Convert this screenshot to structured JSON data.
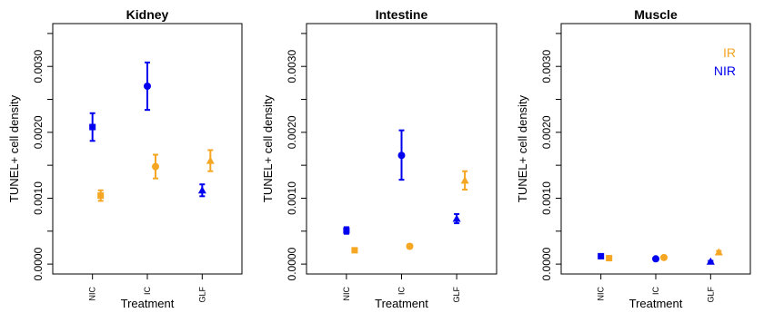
{
  "colors": {
    "IR": "#f5a623",
    "NIR": "#0000ee",
    "axis": "#000000"
  },
  "legend": {
    "placement": "top-right",
    "entries": [
      "IR",
      "NIR"
    ],
    "shown_in_panel": 2
  },
  "chart_data": [
    {
      "type": "scatter",
      "title": "Kidney",
      "xlabel": "Treatment",
      "ylabel": "TUNEL+ cell density",
      "categories": [
        "NIC",
        "IC",
        "GLF"
      ],
      "markers": [
        "square",
        "circle",
        "triangle"
      ],
      "ylim": [
        -0.00015,
        0.00365
      ],
      "yticks": [
        0,
        0.001,
        0.002,
        0.003
      ],
      "ytick_labels": [
        "0.0000",
        "0.0010",
        "0.0020",
        "0.0030"
      ],
      "grid": false,
      "series": [
        {
          "name": "NIR",
          "values": [
            0.00208,
            0.0027,
            0.00112
          ],
          "lower": [
            0.00187,
            0.00234,
            0.00103
          ],
          "upper": [
            0.00229,
            0.00306,
            0.00121
          ]
        },
        {
          "name": "IR",
          "values": [
            0.00104,
            0.00148,
            0.00157
          ],
          "lower": [
            0.00096,
            0.0013,
            0.00141
          ],
          "upper": [
            0.00112,
            0.00166,
            0.00173
          ]
        }
      ]
    },
    {
      "type": "scatter",
      "title": "Intestine",
      "xlabel": "Treatment",
      "ylabel": "TUNEL+ cell density",
      "categories": [
        "NIC",
        "IC",
        "GLF"
      ],
      "markers": [
        "square",
        "circle",
        "triangle"
      ],
      "ylim": [
        -0.00015,
        0.00365
      ],
      "yticks": [
        0,
        0.001,
        0.002,
        0.003
      ],
      "ytick_labels": [
        "0.0000",
        "0.0010",
        "0.0020",
        "0.0030"
      ],
      "grid": false,
      "series": [
        {
          "name": "NIR",
          "values": [
            0.00051,
            0.00165,
            0.00069
          ],
          "lower": [
            0.00046,
            0.00128,
            0.00062
          ],
          "upper": [
            0.00056,
            0.00203,
            0.00076
          ]
        },
        {
          "name": "IR",
          "values": [
            0.00021,
            0.00027,
            0.00127
          ],
          "lower": [
            0.00019,
            0.00024,
            0.00113
          ],
          "upper": [
            0.00023,
            0.0003,
            0.00141
          ]
        }
      ]
    },
    {
      "type": "scatter",
      "title": "Muscle",
      "xlabel": "Treatment",
      "ylabel": "TUNEL+ cell density",
      "categories": [
        "NIC",
        "IC",
        "GLF"
      ],
      "markers": [
        "square",
        "circle",
        "triangle"
      ],
      "ylim": [
        -0.00015,
        0.00365
      ],
      "yticks": [
        0,
        0.001,
        0.002,
        0.003
      ],
      "ytick_labels": [
        "0.0000",
        "0.0010",
        "0.0020",
        "0.0030"
      ],
      "grid": false,
      "series": [
        {
          "name": "NIR",
          "values": [
            0.00012,
            8e-05,
            4e-05
          ],
          "lower": [
            0.00011,
            7e-05,
            3e-05
          ],
          "upper": [
            0.00013,
            9e-05,
            5e-05
          ]
        },
        {
          "name": "IR",
          "values": [
            9e-05,
            0.0001,
            0.00018
          ],
          "lower": [
            8e-05,
            9e-05,
            0.00016
          ],
          "upper": [
            0.0001,
            0.00011,
            0.0002
          ]
        }
      ]
    }
  ]
}
